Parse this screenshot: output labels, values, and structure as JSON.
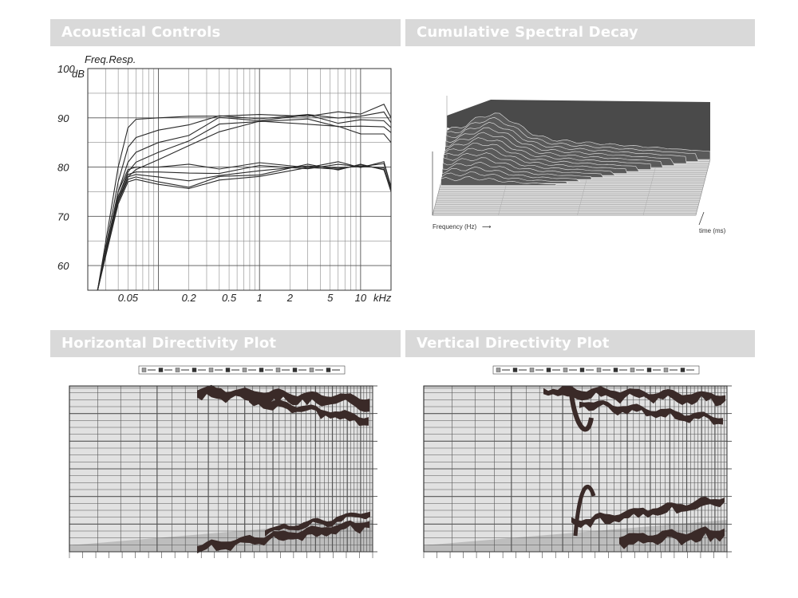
{
  "headers": {
    "acoustical": "Acoustical Controls",
    "decay": "Cumulative Spectral Decay",
    "horizontal": "Horizontal Directivity Plot",
    "vertical": "Vertical Directivity Plot"
  },
  "chart_data": [
    {
      "type": "line",
      "title": "Freq.Resp.",
      "ylabel": "dB",
      "xlabel": "kHz",
      "x_scale": "log",
      "xlim": [
        0.02,
        20
      ],
      "ylim": [
        55,
        100
      ],
      "x_ticks": [
        {
          "v": 0.05,
          "label": "0.05"
        },
        {
          "v": 0.2,
          "label": "0.2"
        },
        {
          "v": 0.5,
          "label": "0.5"
        },
        {
          "v": 1,
          "label": "1"
        },
        {
          "v": 2,
          "label": "2"
        },
        {
          "v": 5,
          "label": "5"
        },
        {
          "v": 10,
          "label": "10"
        }
      ],
      "y_ticks": [
        100,
        90,
        80,
        70,
        60
      ],
      "grid": true,
      "series": [
        {
          "points": [
            [
              0.025,
              55
            ],
            [
              0.04,
              80
            ],
            [
              0.05,
              88
            ],
            [
              0.06,
              89.7
            ],
            [
              0.1,
              90
            ],
            [
              0.2,
              90.2
            ],
            [
              0.4,
              90.5
            ],
            [
              1,
              90.5
            ],
            [
              3,
              90.5
            ],
            [
              6,
              91
            ],
            [
              10,
              91
            ],
            [
              17,
              92.5
            ],
            [
              20,
              90
            ]
          ]
        },
        {
          "points": [
            [
              0.025,
              55
            ],
            [
              0.04,
              77
            ],
            [
              0.05,
              84
            ],
            [
              0.06,
              86
            ],
            [
              0.1,
              87.5
            ],
            [
              0.2,
              89
            ],
            [
              0.4,
              90
            ],
            [
              1,
              90.2
            ],
            [
              3,
              90.3
            ],
            [
              6,
              90.3
            ],
            [
              10,
              90
            ],
            [
              17,
              91.5
            ],
            [
              20,
              89
            ]
          ]
        },
        {
          "points": [
            [
              0.025,
              55
            ],
            [
              0.04,
              75
            ],
            [
              0.05,
              81
            ],
            [
              0.06,
              83
            ],
            [
              0.1,
              85
            ],
            [
              0.2,
              87
            ],
            [
              0.4,
              89.5
            ],
            [
              1,
              90
            ],
            [
              3,
              90
            ],
            [
              6,
              89.5
            ],
            [
              10,
              89
            ],
            [
              17,
              90
            ],
            [
              20,
              88
            ]
          ]
        },
        {
          "points": [
            [
              0.025,
              55
            ],
            [
              0.04,
              74
            ],
            [
              0.05,
              79
            ],
            [
              0.06,
              81
            ],
            [
              0.1,
              83
            ],
            [
              0.2,
              85.5
            ],
            [
              0.4,
              88.5
            ],
            [
              1,
              89.5
            ],
            [
              3,
              89.5
            ],
            [
              6,
              88.5
            ],
            [
              10,
              88
            ],
            [
              17,
              88.5
            ],
            [
              20,
              87
            ]
          ]
        },
        {
          "points": [
            [
              0.025,
              55
            ],
            [
              0.04,
              73
            ],
            [
              0.05,
              78
            ],
            [
              0.06,
              79.5
            ],
            [
              0.1,
              81.5
            ],
            [
              0.2,
              84
            ],
            [
              0.4,
              87.5
            ],
            [
              1,
              89
            ],
            [
              3,
              89
            ],
            [
              6,
              88
            ],
            [
              10,
              87
            ],
            [
              17,
              86.5
            ],
            [
              20,
              85
            ]
          ]
        },
        {
          "points": [
            [
              0.025,
              55
            ],
            [
              0.04,
              75
            ],
            [
              0.05,
              79.5
            ],
            [
              0.06,
              80
            ],
            [
              0.1,
              80
            ],
            [
              0.2,
              80
            ],
            [
              0.4,
              80.2
            ],
            [
              1,
              80.3
            ],
            [
              3,
              80.5
            ],
            [
              6,
              80.5
            ],
            [
              10,
              80.5
            ],
            [
              17,
              80.5
            ],
            [
              20,
              76
            ]
          ]
        },
        {
          "points": [
            [
              0.025,
              55
            ],
            [
              0.04,
              74
            ],
            [
              0.05,
              78.5
            ],
            [
              0.06,
              79
            ],
            [
              0.1,
              79
            ],
            [
              0.2,
              78.5
            ],
            [
              0.4,
              79
            ],
            [
              1,
              80
            ],
            [
              3,
              80
            ],
            [
              6,
              80.2
            ],
            [
              10,
              80.5
            ],
            [
              17,
              80.3
            ],
            [
              20,
              76
            ]
          ]
        },
        {
          "points": [
            [
              0.025,
              55
            ],
            [
              0.04,
              73.5
            ],
            [
              0.05,
              78
            ],
            [
              0.06,
              78.5
            ],
            [
              0.1,
              78
            ],
            [
              0.2,
              77.5
            ],
            [
              0.4,
              78
            ],
            [
              1,
              79.5
            ],
            [
              3,
              80
            ],
            [
              6,
              80
            ],
            [
              10,
              80
            ],
            [
              17,
              80
            ],
            [
              20,
              75.5
            ]
          ]
        },
        {
          "points": [
            [
              0.025,
              55
            ],
            [
              0.04,
              73
            ],
            [
              0.05,
              77.5
            ],
            [
              0.06,
              78
            ],
            [
              0.1,
              77
            ],
            [
              0.2,
              76.5
            ],
            [
              0.4,
              77.5
            ],
            [
              1,
              79
            ],
            [
              3,
              80
            ],
            [
              6,
              80
            ],
            [
              10,
              80
            ],
            [
              17,
              80
            ],
            [
              20,
              75.5
            ]
          ]
        },
        {
          "points": [
            [
              0.025,
              55
            ],
            [
              0.04,
              72.5
            ],
            [
              0.05,
              77
            ],
            [
              0.06,
              77.5
            ],
            [
              0.1,
              76.5
            ],
            [
              0.2,
              76
            ],
            [
              0.4,
              77
            ],
            [
              1,
              78.5
            ],
            [
              3,
              79.5
            ],
            [
              6,
              80
            ],
            [
              10,
              80
            ],
            [
              17,
              80
            ],
            [
              20,
              75
            ]
          ]
        }
      ]
    },
    {
      "type": "area",
      "title": "",
      "xlabel": "Frequency (Hz)",
      "ylabel": "time (ms)"
    },
    {
      "type": "heatmap",
      "title": ""
    },
    {
      "type": "heatmap",
      "title": ""
    }
  ],
  "colors": {
    "header_bg": "#d9d9d9",
    "header_text": "#ffffff",
    "line": "#2a2a2a",
    "decay_fill": "#4a4a4a",
    "plot_gray": "#b8b8b8",
    "plot_dark": "#3a2a28"
  },
  "decay": {
    "freq_label": "Frequency (Hz)",
    "time_label": "time (ms)"
  }
}
